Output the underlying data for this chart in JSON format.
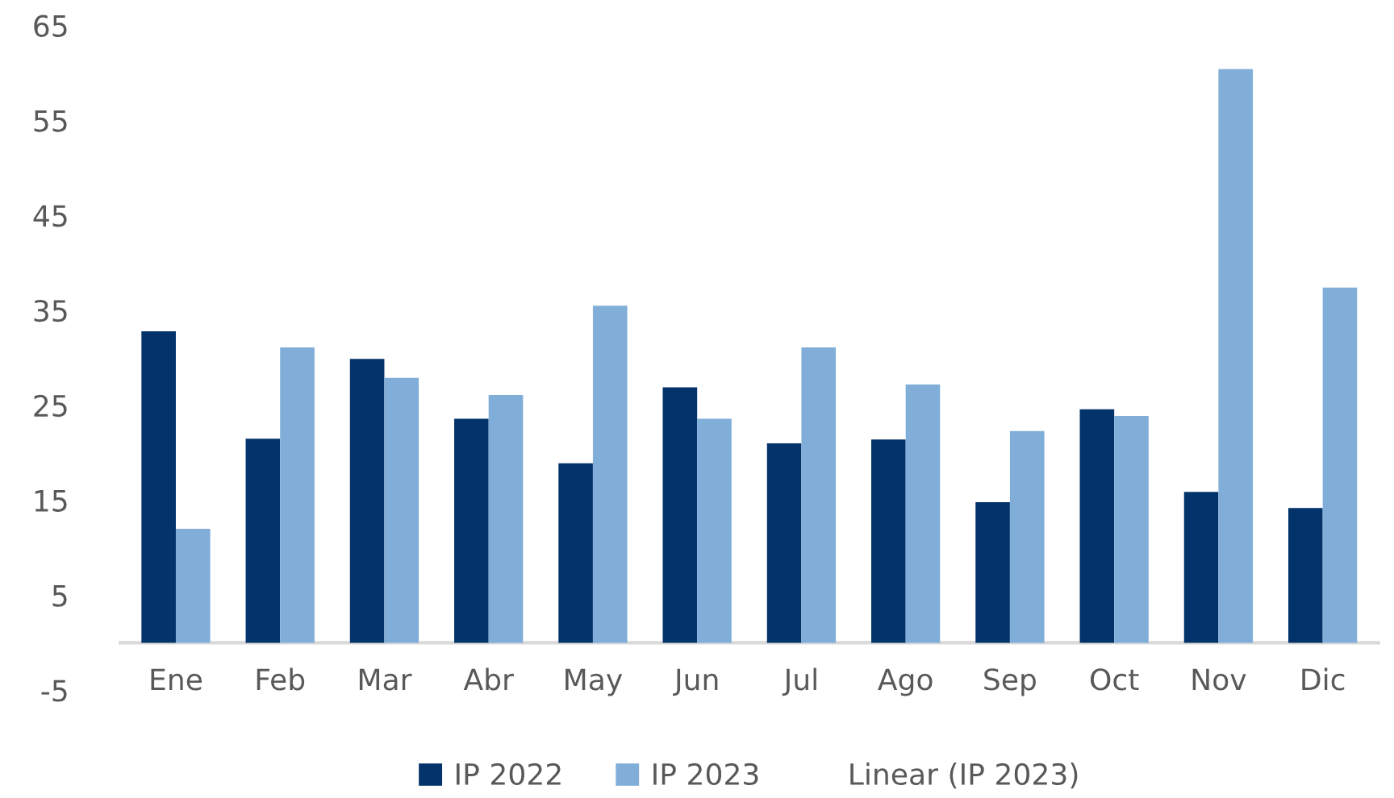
{
  "chart_data": {
    "type": "bar",
    "categories": [
      "Ene",
      "Feb",
      "Mar",
      "Abr",
      "May",
      "Jun",
      "Jul",
      "Ago",
      "Sep",
      "Oct",
      "Nov",
      "Dic"
    ],
    "series": [
      {
        "name": "IP 2022",
        "color": "#03336b",
        "values": [
          32.8,
          21.5,
          29.9,
          23.6,
          18.9,
          26.9,
          21.0,
          21.4,
          14.8,
          24.6,
          15.9,
          14.2
        ]
      },
      {
        "name": "IP 2023",
        "color": "#80aed8",
        "values": [
          12.0,
          31.1,
          27.9,
          26.1,
          35.5,
          23.6,
          31.1,
          27.2,
          22.3,
          23.9,
          60.4,
          37.4
        ]
      },
      {
        "name": "Linear (IP 2023)",
        "type": "line",
        "values": [
          null,
          null,
          null,
          null,
          null,
          null,
          null,
          null,
          null,
          null,
          null,
          null
        ]
      }
    ],
    "ylim": [
      -5,
      65
    ],
    "yticks": [
      -5,
      5,
      15,
      25,
      35,
      45,
      55,
      65
    ],
    "grid": false,
    "legend": "bottom"
  }
}
